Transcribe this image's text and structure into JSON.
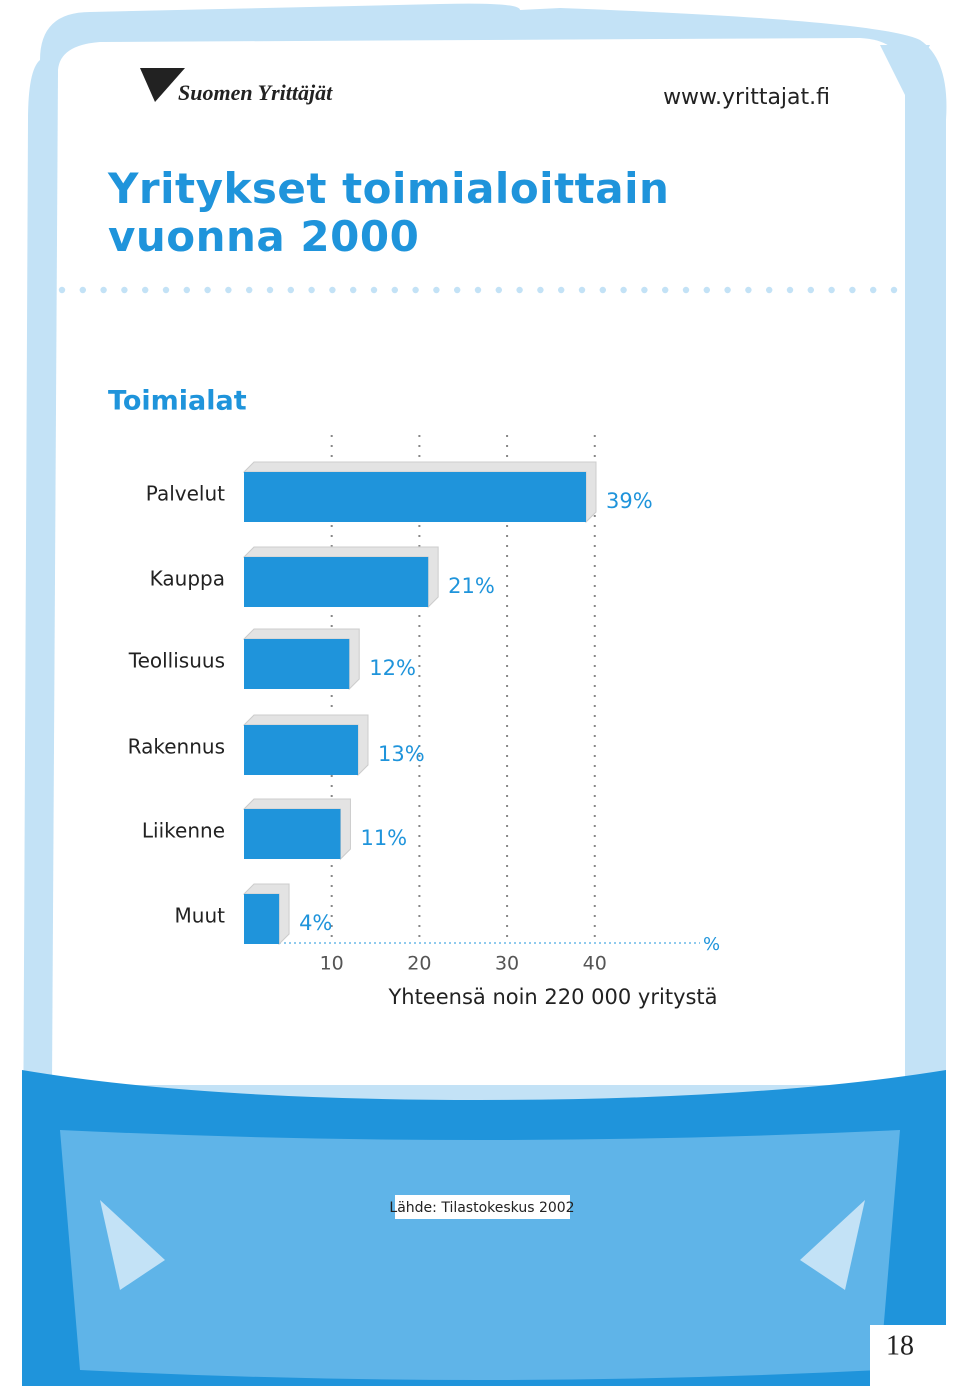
{
  "header": {
    "logo": "Suomen Yrittäjät",
    "url": "www.yrittajat.fi"
  },
  "chart_data": {
    "type": "hbar",
    "title": "Yritykset toimialoittain vuonna 2000",
    "subtitle": "Toimialat",
    "categories": [
      "Palvelut",
      "Kauppa",
      "Teollisuus",
      "Rakennus",
      "Liikenne",
      "Muut"
    ],
    "values": [
      39,
      21,
      12,
      13,
      11,
      4
    ],
    "value_labels": [
      "39%",
      "21%",
      "12%",
      "13%",
      "11%",
      "4%"
    ],
    "color": "#1f94db",
    "xlim": [
      0,
      52
    ],
    "xticks": [
      10,
      20,
      30,
      40
    ],
    "x_label": "%",
    "grid": true,
    "note": "Yhteensä noin 220 000 yritystä"
  },
  "footer": {
    "source": "Lähde: Tilastokeskus 2002",
    "page": "18"
  }
}
